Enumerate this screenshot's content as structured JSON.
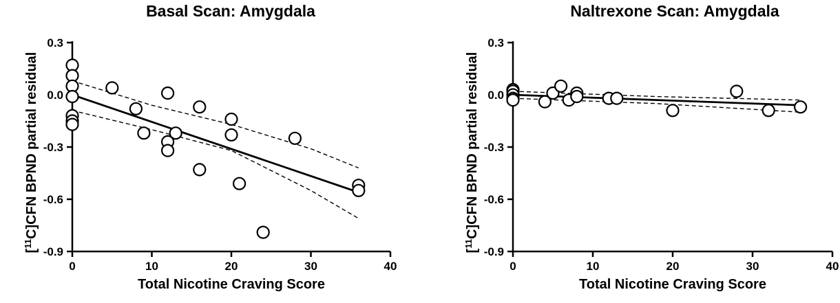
{
  "chart_data": [
    {
      "type": "scatter",
      "title": "Basal Scan: Amygdala",
      "xlabel": "Total Nicotine Craving Score",
      "ylabel_prefix": "[",
      "ylabel_sup": "11",
      "ylabel_main": "C]CFN BPND partial residual",
      "xlim": [
        0,
        40
      ],
      "ylim": [
        -0.9,
        0.3
      ],
      "xticks": [
        0,
        10,
        20,
        30,
        40
      ],
      "yticks": [
        -0.9,
        -0.6,
        -0.3,
        0.0,
        0.3
      ],
      "xtick_labels": [
        "0",
        "10",
        "20",
        "30",
        "40"
      ],
      "ytick_labels": [
        "-0.9",
        "-0.6",
        "-0.3",
        "0.0",
        "0.3"
      ],
      "points": [
        {
          "x": 0,
          "y": 0.17
        },
        {
          "x": 0,
          "y": 0.11
        },
        {
          "x": 0,
          "y": 0.05
        },
        {
          "x": 0,
          "y": -0.01
        },
        {
          "x": 0,
          "y": -0.12
        },
        {
          "x": 0,
          "y": -0.15
        },
        {
          "x": 0,
          "y": -0.17
        },
        {
          "x": 5,
          "y": 0.04
        },
        {
          "x": 8,
          "y": -0.08
        },
        {
          "x": 9,
          "y": -0.22
        },
        {
          "x": 12,
          "y": 0.01
        },
        {
          "x": 12,
          "y": -0.27
        },
        {
          "x": 12,
          "y": -0.32
        },
        {
          "x": 13,
          "y": -0.22
        },
        {
          "x": 16,
          "y": -0.07
        },
        {
          "x": 16,
          "y": -0.43
        },
        {
          "x": 20,
          "y": -0.14
        },
        {
          "x": 20,
          "y": -0.23
        },
        {
          "x": 21,
          "y": -0.51
        },
        {
          "x": 24,
          "y": -0.79
        },
        {
          "x": 28,
          "y": -0.25
        },
        {
          "x": 36,
          "y": -0.52
        },
        {
          "x": 36,
          "y": -0.55
        }
      ],
      "fit_line": {
        "x": [
          0,
          36
        ],
        "y": [
          0.0,
          -0.56
        ]
      },
      "ci_upper": {
        "x": [
          0,
          10,
          20,
          30,
          36
        ],
        "y": [
          0.08,
          -0.06,
          -0.17,
          -0.31,
          -0.42
        ]
      },
      "ci_lower": {
        "x": [
          0,
          10,
          20,
          30,
          36
        ],
        "y": [
          -0.09,
          -0.2,
          -0.32,
          -0.55,
          -0.71
        ]
      }
    },
    {
      "type": "scatter",
      "title": "Naltrexone Scan: Amygdala",
      "xlabel": "Total Nicotine Craving Score",
      "ylabel_prefix": "[",
      "ylabel_sup": "11",
      "ylabel_main": "C]CFN BPND partial residual",
      "xlim": [
        0,
        40
      ],
      "ylim": [
        -0.9,
        0.3
      ],
      "xticks": [
        0,
        10,
        20,
        30,
        40
      ],
      "yticks": [
        -0.9,
        -0.6,
        -0.3,
        0.0,
        0.3
      ],
      "xtick_labels": [
        "0",
        "10",
        "20",
        "30",
        "40"
      ],
      "ytick_labels": [
        "-0.9",
        "-0.6",
        "-0.3",
        "0.0",
        "0.3"
      ],
      "points": [
        {
          "x": 0,
          "y": 0.03
        },
        {
          "x": 0,
          "y": 0.02
        },
        {
          "x": 0,
          "y": 0.0
        },
        {
          "x": 0,
          "y": -0.02
        },
        {
          "x": 0,
          "y": -0.03
        },
        {
          "x": 4,
          "y": -0.04
        },
        {
          "x": 5,
          "y": 0.01
        },
        {
          "x": 6,
          "y": 0.05
        },
        {
          "x": 7,
          "y": -0.03
        },
        {
          "x": 8,
          "y": 0.01
        },
        {
          "x": 8,
          "y": -0.01
        },
        {
          "x": 12,
          "y": -0.02
        },
        {
          "x": 13,
          "y": -0.02
        },
        {
          "x": 20,
          "y": -0.09
        },
        {
          "x": 28,
          "y": 0.02
        },
        {
          "x": 32,
          "y": -0.09
        },
        {
          "x": 36,
          "y": -0.07
        }
      ],
      "fit_line": {
        "x": [
          0,
          36
        ],
        "y": [
          0.0,
          -0.06
        ]
      },
      "ci_upper": {
        "x": [
          0,
          18,
          36
        ],
        "y": [
          0.02,
          -0.01,
          -0.03
        ]
      },
      "ci_lower": {
        "x": [
          0,
          18,
          36
        ],
        "y": [
          -0.02,
          -0.05,
          -0.1
        ]
      }
    }
  ]
}
